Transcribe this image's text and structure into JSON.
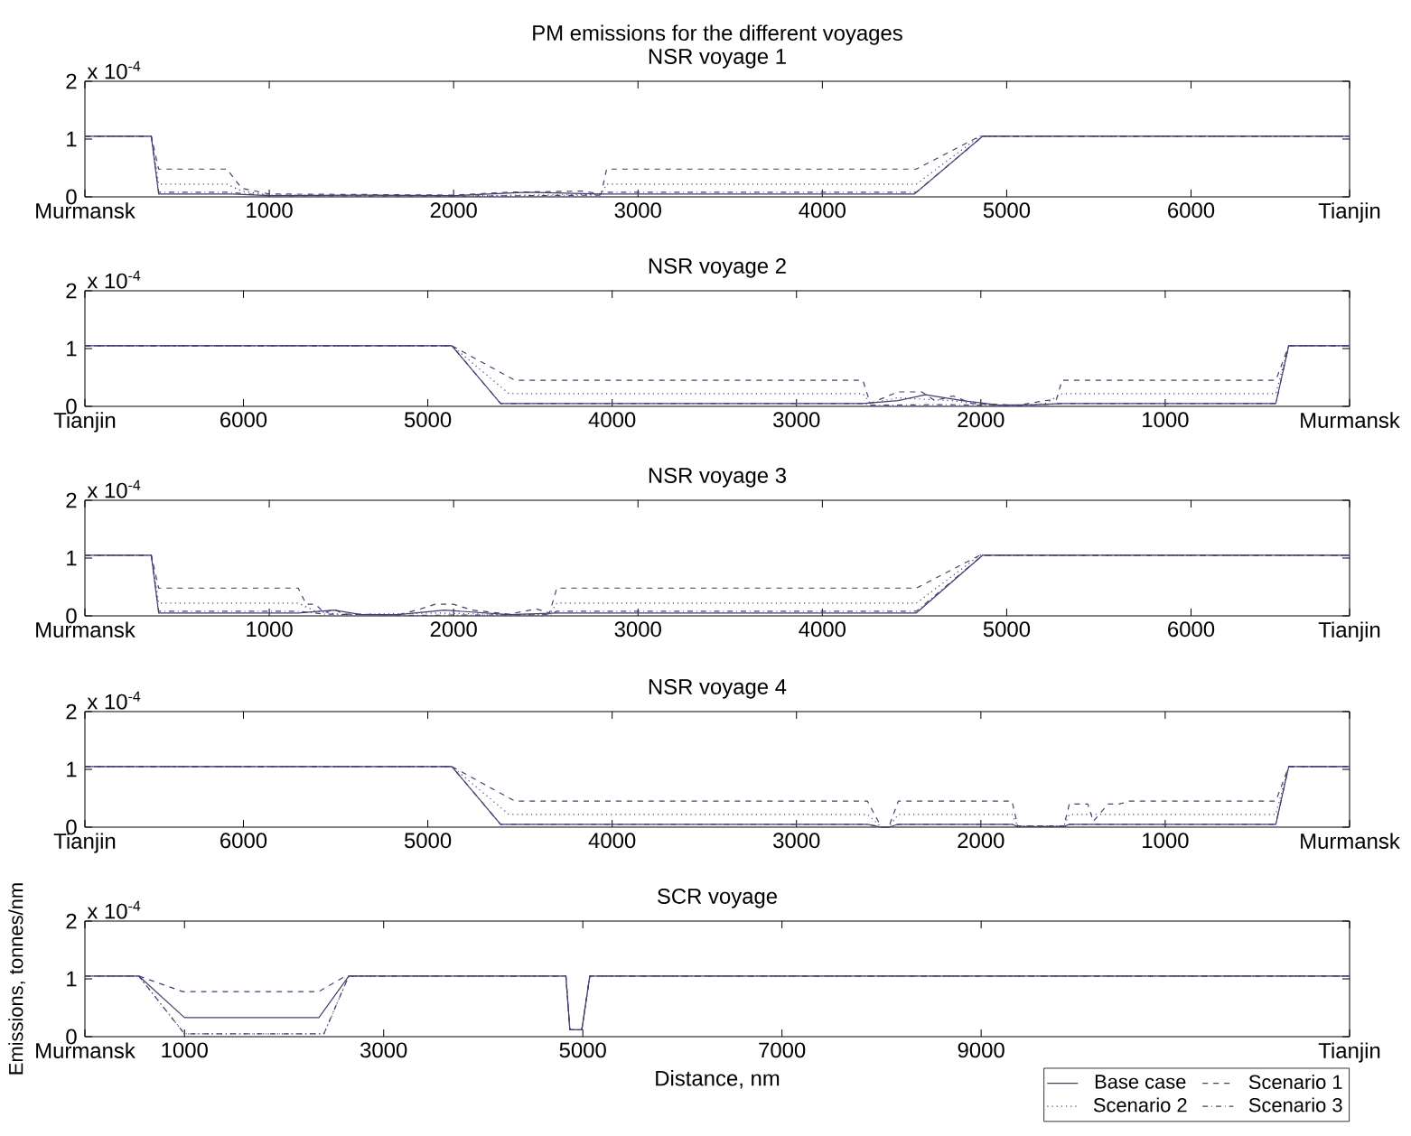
{
  "chart_data": [
    {
      "type": "line",
      "title": "PM emissions for the different voyages",
      "subtitle": "NSR voyage 1",
      "annotations": [
        "x 10$^{-4}$"
      ],
      "xlim": [
        0,
        6860
      ],
      "ylim": [
        0,
        2
      ],
      "yticks": [
        0,
        1,
        2
      ],
      "xticks": [
        {
          "value": 0,
          "label": "Murmansk"
        },
        1000,
        2000,
        3000,
        4000,
        5000,
        6000,
        {
          "value": 6860,
          "label": "Tianjin"
        }
      ],
      "series": [
        {
          "color": "#404070",
          "line_style": "solid",
          "x": [
            0,
            360,
            400,
            800,
            1000,
            1500,
            2000,
            2400,
            2800,
            4500,
            4870,
            6860
          ],
          "values": [
            1.05,
            1.05,
            0.05,
            0.05,
            0.02,
            0.03,
            0.02,
            0.08,
            0.05,
            0.05,
            1.05,
            1.05
          ]
        },
        {
          "color": "#404070",
          "line_style": "dashed",
          "x": [
            0,
            360,
            400,
            770,
            850,
            1000,
            1500,
            2000,
            2300,
            2700,
            2800,
            2830,
            4510,
            4855,
            6860
          ],
          "values": [
            1.05,
            1.05,
            0.48,
            0.48,
            0.15,
            0.05,
            0.04,
            0.03,
            0.08,
            0.1,
            0.05,
            0.48,
            0.48,
            1.05,
            1.05
          ]
        },
        {
          "color": "#404070",
          "line_style": "dotted",
          "x": [
            0,
            360,
            400,
            770,
            850,
            1000,
            2000,
            2800,
            2830,
            4510,
            4855,
            6860
          ],
          "values": [
            1.05,
            1.05,
            0.22,
            0.22,
            0.1,
            0.03,
            0.02,
            0.04,
            0.22,
            0.22,
            1.05,
            1.05
          ]
        },
        {
          "color": "#404070",
          "line_style": "dashdot",
          "x": [
            0,
            360,
            400,
            770,
            1000,
            2000,
            2800,
            2830,
            4510,
            4870,
            6860
          ],
          "values": [
            1.05,
            1.05,
            0.08,
            0.08,
            0.02,
            0.01,
            0.03,
            0.08,
            0.08,
            1.05,
            1.05
          ]
        }
      ]
    },
    {
      "type": "line",
      "title": "NSR voyage 2",
      "annotations": [
        "x 10$^{-4}$"
      ],
      "xlim": [
        6860,
        0
      ],
      "ylim": [
        0,
        2
      ],
      "yticks": [
        0,
        1,
        2
      ],
      "xticks": [
        {
          "value": 0,
          "label": "Murmansk"
        },
        1000,
        2000,
        3000,
        4000,
        5000,
        6000,
        {
          "value": 6860,
          "label": "Tianjin"
        }
      ],
      "series": [
        {
          "color": "#404070",
          "line_style": "solid",
          "x": [
            6860,
            4870,
            4605,
            2640,
            2450,
            2300,
            2100,
            1900,
            1700,
            1560,
            400,
            330,
            0
          ],
          "values": [
            1.05,
            1.05,
            0.05,
            0.05,
            0.1,
            0.2,
            0.1,
            0.02,
            0.03,
            0.05,
            0.05,
            1.05,
            1.05
          ]
        },
        {
          "color": "#404070",
          "line_style": "dashed",
          "x": [
            6860,
            4870,
            4527,
            2640,
            2600,
            2450,
            2320,
            2250,
            2150,
            2050,
            1800,
            1650,
            1590,
            1560,
            400,
            330,
            0
          ],
          "values": [
            1.05,
            1.05,
            0.45,
            0.45,
            0.05,
            0.25,
            0.25,
            0.1,
            0.18,
            0.05,
            0.02,
            0.1,
            0.12,
            0.45,
            0.45,
            1.05,
            1.05
          ]
        },
        {
          "color": "#404070",
          "line_style": "dotted",
          "x": [
            6860,
            4870,
            4560,
            2640,
            2600,
            2450,
            2300,
            2150,
            2000,
            1800,
            1650,
            1560,
            400,
            330,
            0
          ],
          "values": [
            1.05,
            1.05,
            0.22,
            0.22,
            0.05,
            0.15,
            0.12,
            0.1,
            0.03,
            0.01,
            0.05,
            0.22,
            0.22,
            1.05,
            1.05
          ]
        },
        {
          "color": "#404070",
          "line_style": "dashdot",
          "x": [
            6860,
            4870,
            4605,
            2640,
            2600,
            2200,
            1800,
            1560,
            400,
            330,
            0
          ],
          "values": [
            1.05,
            1.05,
            0.05,
            0.05,
            0.02,
            0.03,
            0.01,
            0.05,
            0.05,
            1.05,
            1.05
          ]
        }
      ]
    },
    {
      "type": "line",
      "title": "NSR voyage 3",
      "annotations": [
        "x 10$^{-4}$"
      ],
      "xlim": [
        0,
        6860
      ],
      "ylim": [
        0,
        2
      ],
      "yticks": [
        0,
        1,
        2
      ],
      "xticks": [
        {
          "value": 0,
          "label": "Murmansk"
        },
        1000,
        2000,
        3000,
        4000,
        5000,
        6000,
        {
          "value": 6860,
          "label": "Tianjin"
        }
      ],
      "series": [
        {
          "color": "#404070",
          "line_style": "solid",
          "x": [
            0,
            360,
            400,
            1157,
            1350,
            1500,
            1700,
            1950,
            2300,
            2560,
            4510,
            4870,
            6860
          ],
          "values": [
            1.05,
            1.05,
            0.05,
            0.05,
            0.1,
            0.02,
            0.02,
            0.1,
            0.02,
            0.05,
            0.05,
            1.05,
            1.05
          ]
        },
        {
          "color": "#404070",
          "line_style": "dashed",
          "x": [
            0,
            360,
            400,
            1157,
            1200,
            1250,
            1300,
            1350,
            1400,
            1700,
            1800,
            1900,
            2000,
            2100,
            2300,
            2450,
            2520,
            2560,
            4510,
            4855,
            6860
          ],
          "values": [
            1.05,
            1.05,
            0.48,
            0.48,
            0.2,
            0.2,
            0.05,
            0.12,
            0.03,
            0.02,
            0.1,
            0.2,
            0.2,
            0.1,
            0.03,
            0.12,
            0.05,
            0.48,
            0.48,
            1.05,
            1.05
          ]
        },
        {
          "color": "#404070",
          "line_style": "dotted",
          "x": [
            0,
            360,
            400,
            1157,
            1250,
            1400,
            1900,
            2300,
            2520,
            2560,
            4510,
            4855,
            6860
          ],
          "values": [
            1.05,
            1.05,
            0.22,
            0.22,
            0.08,
            0.02,
            0.05,
            0.02,
            0.03,
            0.22,
            0.22,
            1.05,
            1.05
          ]
        },
        {
          "color": "#404070",
          "line_style": "dashdot",
          "x": [
            0,
            360,
            400,
            1157,
            1300,
            1800,
            2520,
            2560,
            4510,
            4870,
            6860
          ],
          "values": [
            1.05,
            1.05,
            0.08,
            0.08,
            0.03,
            0.01,
            0.02,
            0.08,
            0.08,
            1.05,
            1.05
          ]
        }
      ]
    },
    {
      "type": "line",
      "title": "NSR voyage 4",
      "annotations": [
        "x 10$^{-4}$"
      ],
      "xlim": [
        6860,
        0
      ],
      "ylim": [
        0,
        2
      ],
      "yticks": [
        0,
        1,
        2
      ],
      "xticks": [
        {
          "value": 0,
          "label": "Murmansk"
        },
        1000,
        2000,
        3000,
        4000,
        5000,
        6000,
        {
          "value": 6860,
          "label": "Tianjin"
        }
      ],
      "series": [
        {
          "color": "#404070",
          "line_style": "solid",
          "x": [
            6860,
            4870,
            4605,
            2615,
            2540,
            2500,
            2448,
            1831,
            1800,
            1550,
            1520,
            400,
            330,
            0
          ],
          "values": [
            1.05,
            1.05,
            0.05,
            0.05,
            0,
            0,
            0.05,
            0.05,
            0.01,
            0.01,
            0.05,
            0.05,
            1.05,
            1.05
          ]
        },
        {
          "color": "#404070",
          "line_style": "dashed",
          "x": [
            6860,
            4870,
            4527,
            2615,
            2540,
            2500,
            2448,
            1831,
            1800,
            1550,
            1520,
            1420,
            1390,
            1310,
            1250,
            1193,
            400,
            330,
            0
          ],
          "values": [
            1.05,
            1.05,
            0.45,
            0.45,
            0,
            0,
            0.45,
            0.45,
            0.02,
            0.02,
            0.4,
            0.4,
            0.1,
            0.4,
            0.4,
            0.45,
            0.45,
            1.05,
            1.05
          ]
        },
        {
          "color": "#404070",
          "line_style": "dotted",
          "x": [
            6860,
            4870,
            4560,
            2615,
            2540,
            2500,
            2448,
            1831,
            1800,
            1550,
            1520,
            400,
            330,
            0
          ],
          "values": [
            1.05,
            1.05,
            0.22,
            0.22,
            0,
            0,
            0.22,
            0.22,
            0.02,
            0.02,
            0.22,
            0.22,
            1.05,
            1.05
          ]
        },
        {
          "color": "#404070",
          "line_style": "dashdot",
          "x": [
            6860,
            4870,
            4605,
            2615,
            2540,
            2500,
            2448,
            1831,
            1800,
            1550,
            1520,
            400,
            330,
            0
          ],
          "values": [
            1.05,
            1.05,
            0.05,
            0.05,
            0,
            0,
            0.05,
            0.05,
            0.01,
            0.01,
            0.05,
            0.05,
            1.05,
            1.05
          ]
        }
      ]
    },
    {
      "type": "line",
      "title": "SCR voyage",
      "xlabel": "Distance, nm",
      "ylabel": "Emissions, tonnes/nm",
      "annotations": [
        "x 10$^{-4}$"
      ],
      "xlim": [
        0,
        12700
      ],
      "ylim": [
        0,
        2
      ],
      "yticks": [
        0,
        1,
        2
      ],
      "legend": "bottom right",
      "xticks": [
        {
          "value": 0,
          "label": "Murmansk"
        },
        1000,
        3000,
        5000,
        7000,
        9000,
        {
          "value": 12700,
          "label": "Tianjin"
        }
      ],
      "series": [
        {
          "name": "Base case",
          "color": "#404070",
          "line_style": "solid",
          "x": [
            0,
            540,
            1000,
            2350,
            2650,
            4830,
            4870,
            4990,
            5070,
            12700
          ],
          "values": [
            1.05,
            1.05,
            0.33,
            0.33,
            1.05,
            1.05,
            0.12,
            0.12,
            1.05,
            1.05
          ]
        },
        {
          "name": "Scenario 1",
          "color": "#404070",
          "line_style": "dashed",
          "x": [
            0,
            540,
            980,
            2350,
            2620,
            4830,
            4870,
            4990,
            5070,
            12700
          ],
          "values": [
            1.05,
            1.05,
            0.78,
            0.78,
            1.05,
            1.05,
            0.12,
            0.12,
            1.05,
            1.05
          ]
        },
        {
          "name": "Scenario 2",
          "color": "#404070",
          "line_style": "dotted",
          "x": [
            0,
            540,
            1000,
            2400,
            2650,
            4830,
            4870,
            4990,
            5070,
            12700
          ],
          "values": [
            1.05,
            1.05,
            0.05,
            0.05,
            1.05,
            1.05,
            0.12,
            0.12,
            1.05,
            1.05
          ]
        },
        {
          "name": "Scenario 3",
          "color": "#404070",
          "line_style": "dashdot",
          "x": [
            0,
            540,
            1000,
            2400,
            2650,
            4830,
            4870,
            4990,
            5070,
            12700
          ],
          "values": [
            1.05,
            1.05,
            0.05,
            0.05,
            1.05,
            1.05,
            0.12,
            0.12,
            1.05,
            1.05
          ]
        }
      ]
    }
  ]
}
